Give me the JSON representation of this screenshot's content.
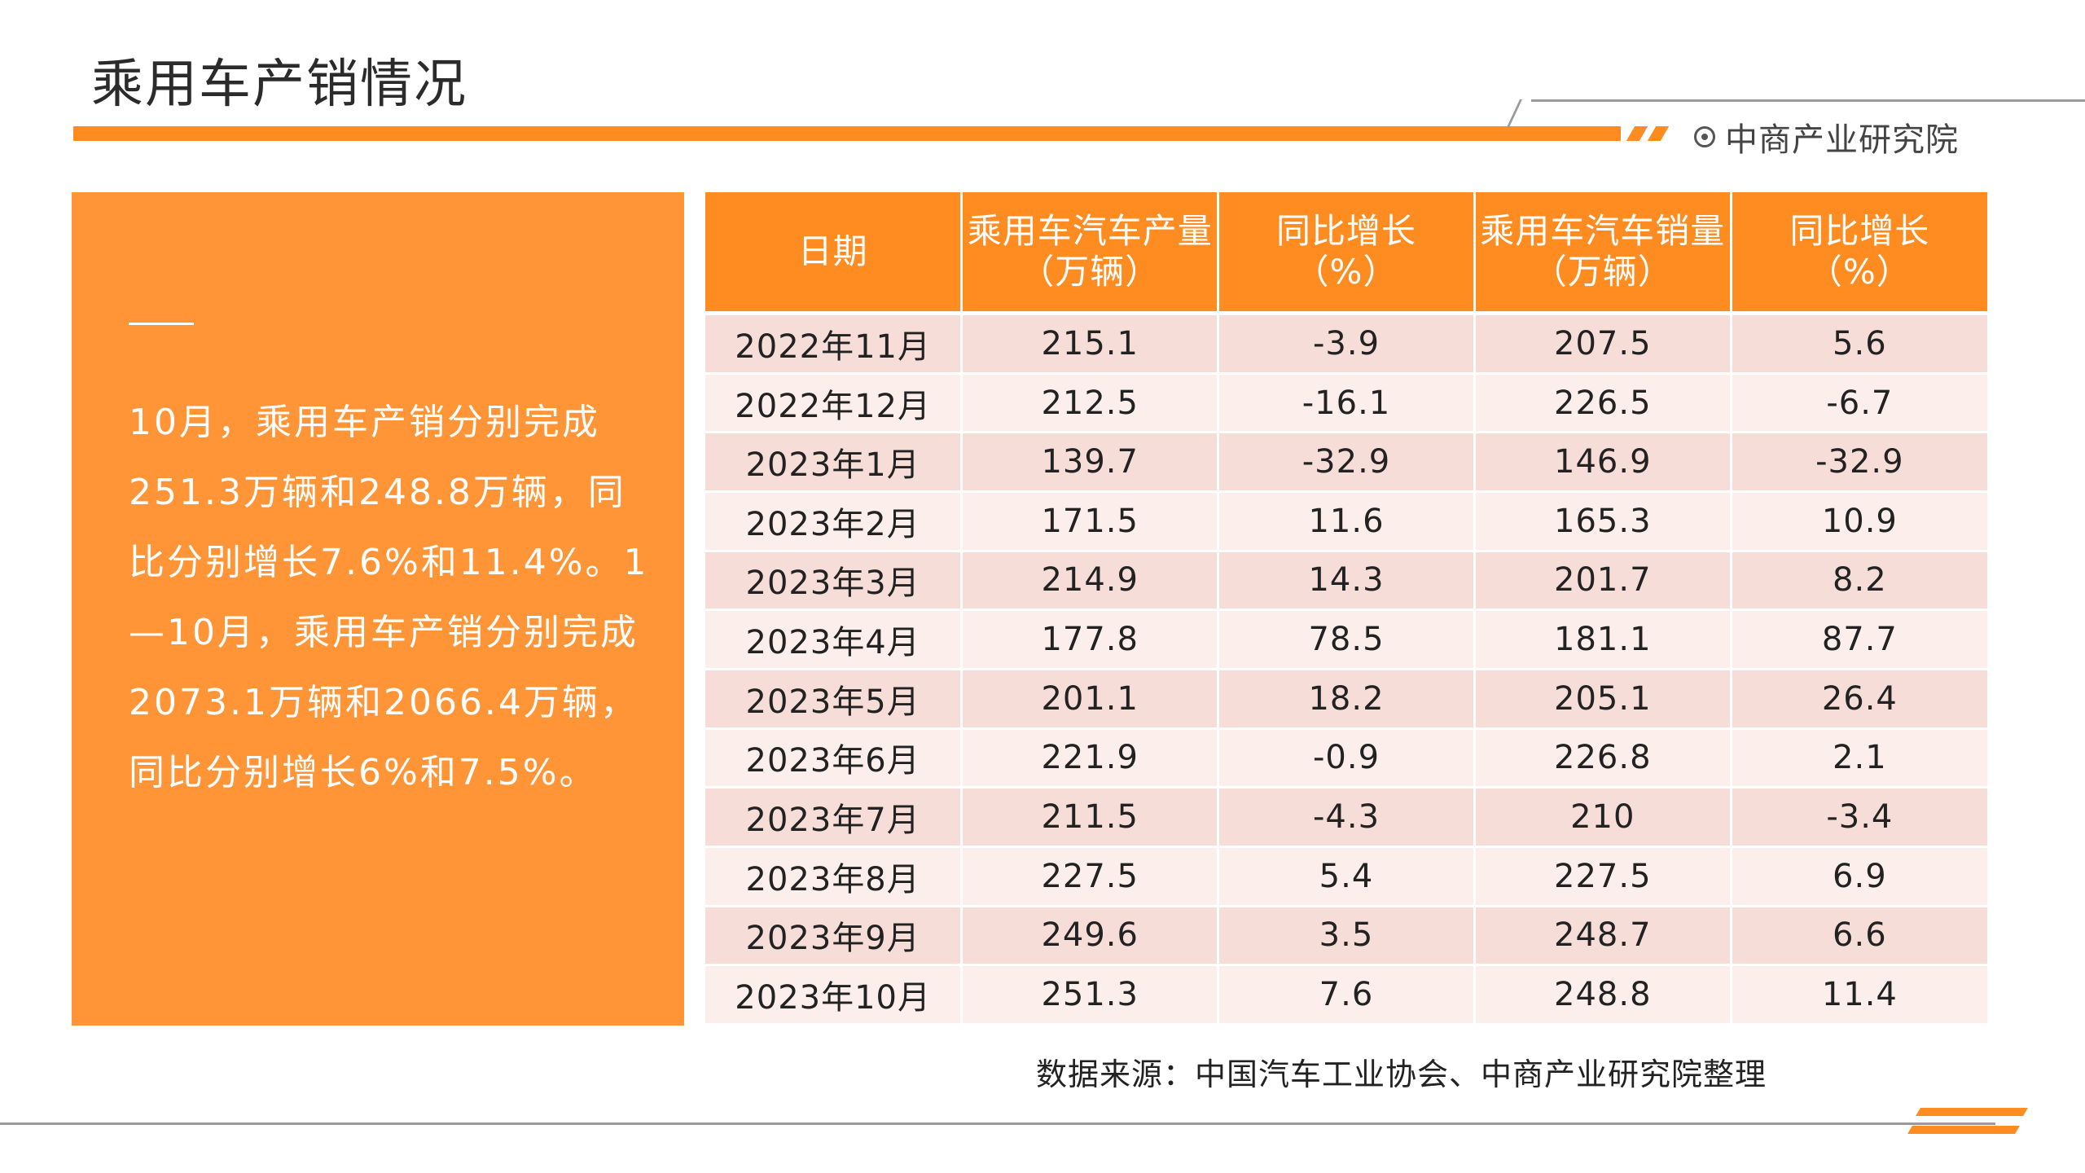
{
  "header": {
    "title": "乘用车产销情况",
    "brand": "中商产业研究院",
    "accent_color": "#FF8C21"
  },
  "summary": {
    "text": "10月，乘用车产销分别完成251.3万辆和248.8万辆，同比分别增长7.6%和11.4%。1—10月，乘用车产销分别完成2073.1万辆和2066.4万辆，同比分别增长6%和7.5%。",
    "panel_color": "#FF9537"
  },
  "table": {
    "headers": [
      {
        "line1": "日期",
        "line2": ""
      },
      {
        "line1": "乘用车汽车产量",
        "line2": "（万辆）"
      },
      {
        "line1": "同比增长",
        "line2": "（%）"
      },
      {
        "line1": "乘用车汽车销量",
        "line2": "（万辆）"
      },
      {
        "line1": "同比增长",
        "line2": "（%）"
      }
    ],
    "rows": [
      [
        "2022年11月",
        "215.1",
        "-3.9",
        "207.5",
        "5.6"
      ],
      [
        "2022年12月",
        "212.5",
        "-16.1",
        "226.5",
        "-6.7"
      ],
      [
        "2023年1月",
        "139.7",
        "-32.9",
        "146.9",
        "-32.9"
      ],
      [
        "2023年2月",
        "171.5",
        "11.6",
        "165.3",
        "10.9"
      ],
      [
        "2023年3月",
        "214.9",
        "14.3",
        "201.7",
        "8.2"
      ],
      [
        "2023年4月",
        "177.8",
        "78.5",
        "181.1",
        "87.7"
      ],
      [
        "2023年5月",
        "201.1",
        "18.2",
        "205.1",
        "26.4"
      ],
      [
        "2023年6月",
        "221.9",
        "-0.9",
        "226.8",
        "2.1"
      ],
      [
        "2023年7月",
        "211.5",
        "-4.3",
        "210",
        "-3.4"
      ],
      [
        "2023年8月",
        "227.5",
        "5.4",
        "227.5",
        "6.9"
      ],
      [
        "2023年9月",
        "249.6",
        "3.5",
        "248.7",
        "6.6"
      ],
      [
        "2023年10月",
        "251.3",
        "7.6",
        "248.8",
        "11.4"
      ]
    ]
  },
  "footer": {
    "source": "数据来源：中国汽车工业协会、中商产业研究院整理"
  }
}
